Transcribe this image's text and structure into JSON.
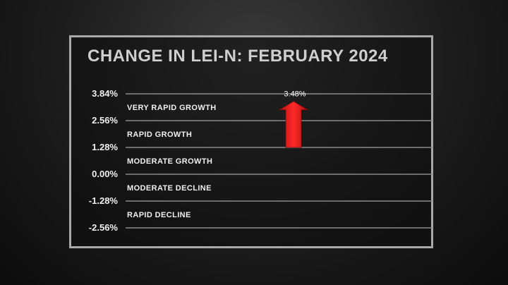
{
  "chart_data": {
    "type": "bar",
    "title": "CHANGE IN LEI-N: FEBRUARY 2024",
    "y_ticks": [
      "3.84%",
      "2.56%",
      "1.28%",
      "0.00%",
      "-1.28%",
      "-2.56%"
    ],
    "ylim": [
      -2.56,
      3.84
    ],
    "zones": [
      {
        "label": "VERY RAPID GROWTH",
        "from": 2.56,
        "to": 3.84
      },
      {
        "label": "RAPID GROWTH",
        "from": 1.28,
        "to": 2.56
      },
      {
        "label": "MODERATE GROWTH",
        "from": 0.0,
        "to": 1.28
      },
      {
        "label": "MODERATE DECLINE",
        "from": -1.28,
        "to": 0.0
      },
      {
        "label": "RAPID DECLINE",
        "from": -2.56,
        "to": -1.28
      }
    ],
    "values": [
      3.48
    ],
    "value_labels": [
      "3.48%"
    ],
    "arrow_base": 1.28,
    "colors": {
      "arrow": "#e01a1a",
      "grid": "#8a8a8a",
      "text": "#f0f0f0"
    }
  }
}
